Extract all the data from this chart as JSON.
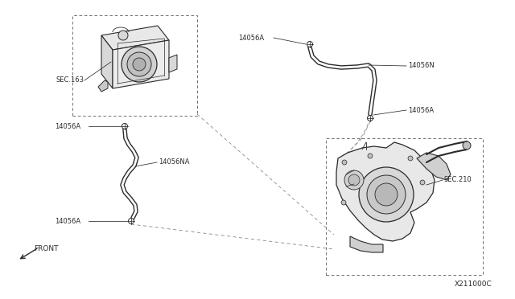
{
  "bg_color": "#ffffff",
  "line_color": "#2a2a2a",
  "text_color": "#2a2a2a",
  "gray_fill": "#f0f0f0",
  "gray_mid": "#d8d8d8",
  "gray_dark": "#b0b0b0",
  "diagram_id": "X211000C",
  "labels": {
    "SEC163": "SEC.163",
    "SEC210": "SEC.210",
    "l14056A_1": "14056A",
    "l14056A_2": "14056A",
    "l14056A_3": "14056A",
    "l14056A_4": "14056A",
    "l14056N": "14056N",
    "l14056NA": "14056NA",
    "front": "FRONT"
  },
  "font_size": 6.0,
  "font_size_id": 6.5
}
